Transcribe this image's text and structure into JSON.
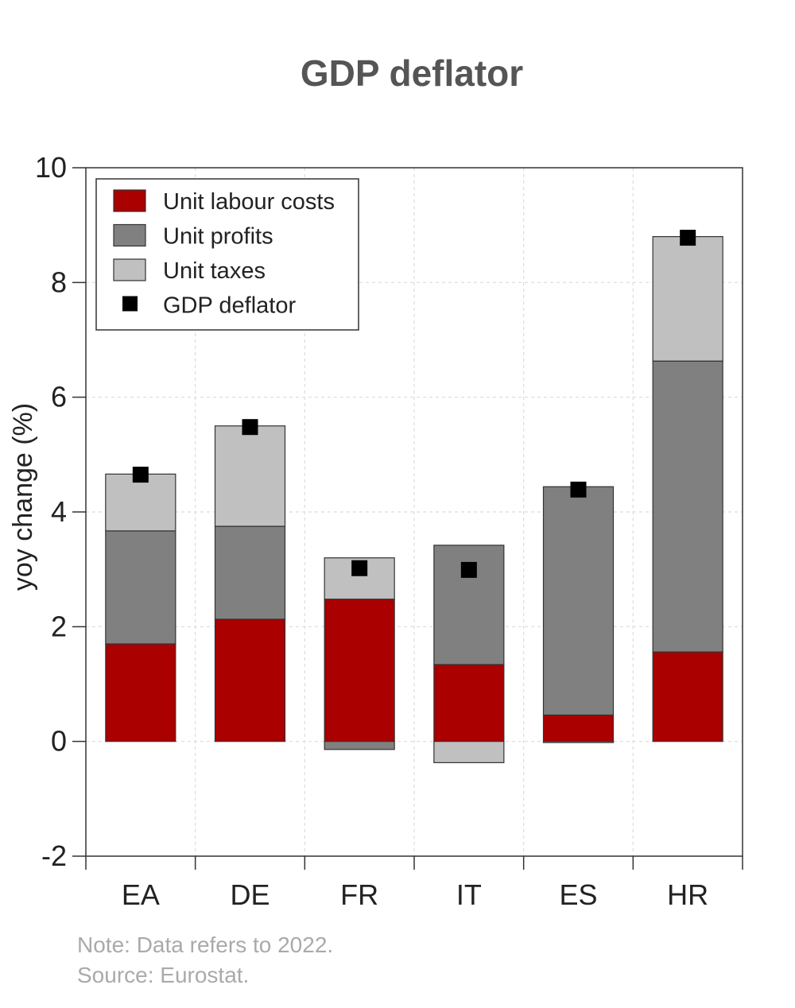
{
  "chart_data": {
    "type": "bar",
    "stacked": true,
    "title": "GDP deflator",
    "xlabel": "",
    "ylabel": "yoy change (%)",
    "ylim": [
      -2,
      10
    ],
    "yticks": [
      -2,
      0,
      2,
      4,
      6,
      8,
      10
    ],
    "grid": true,
    "legend_position": "top-left",
    "categories": [
      "EA",
      "DE",
      "FR",
      "IT",
      "ES",
      "HR"
    ],
    "series": [
      {
        "name": "Unit labour costs",
        "color": "#aa0000",
        "values": [
          1.7,
          2.13,
          2.48,
          1.34,
          0.46,
          1.56
        ]
      },
      {
        "name": "Unit profits",
        "color": "#808080",
        "values": [
          1.97,
          1.62,
          -0.14,
          2.08,
          3.98,
          5.07
        ]
      },
      {
        "name": "Unit taxes",
        "color": "#c0c0c0",
        "values": [
          0.99,
          1.75,
          0.72,
          -0.37,
          -0.02,
          2.17
        ]
      }
    ],
    "markers": {
      "name": "GDP deflator",
      "color": "#000000",
      "values": [
        4.65,
        5.48,
        3.02,
        2.99,
        4.39,
        8.78
      ]
    },
    "note": "Note: Data refers to 2022.",
    "source": "Source: Eurostat."
  }
}
